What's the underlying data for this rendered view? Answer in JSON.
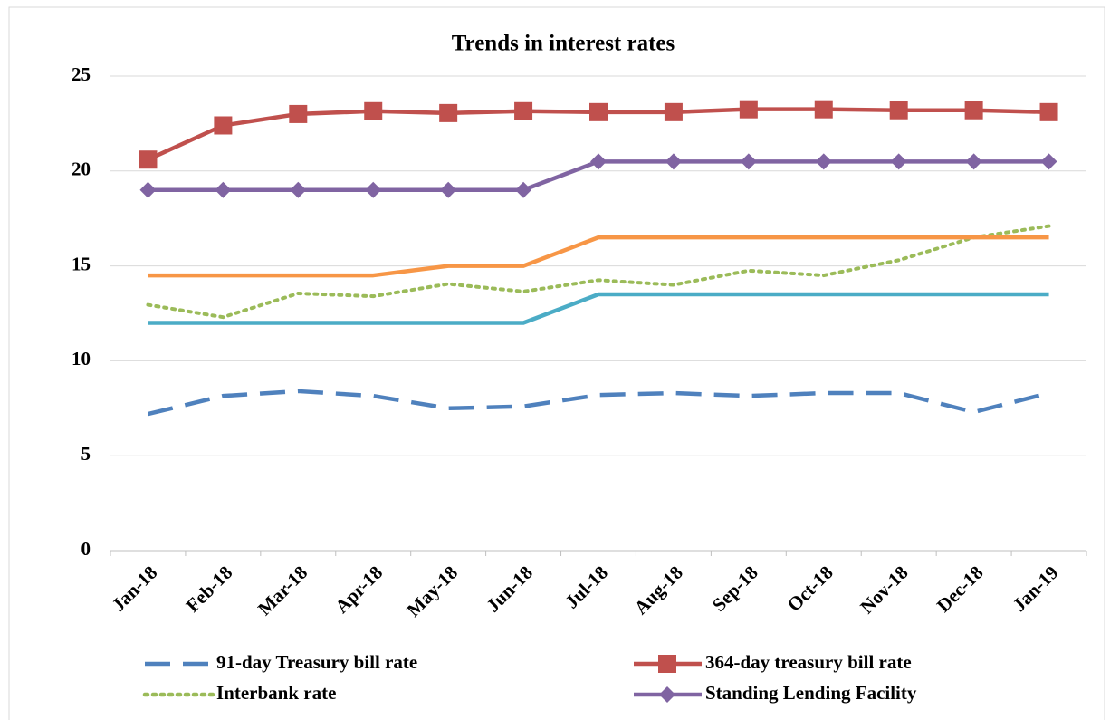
{
  "chart_data": {
    "type": "line",
    "title": "Trends in interest rates",
    "categories": [
      "Jan-18",
      "Feb-18",
      "Mar-18",
      "Apr-18",
      "May-18",
      "Jun-18",
      "Jul-18",
      "Aug-18",
      "Sep-18",
      "Oct-18",
      "Nov-18",
      "Dec-18",
      "Jan-19"
    ],
    "series": [
      {
        "name": "91-day Treasury bill rate",
        "color": "#4f81bd",
        "dash": "dashed",
        "values": [
          7.2,
          8.15,
          8.4,
          8.15,
          7.5,
          7.6,
          8.2,
          8.3,
          8.15,
          8.3,
          8.3,
          7.3,
          8.3
        ]
      },
      {
        "name": "364-day treasury bill rate",
        "color": "#c0504d",
        "marker": "square",
        "values": [
          20.6,
          22.4,
          23.0,
          23.15,
          23.05,
          23.15,
          23.1,
          23.1,
          23.25,
          23.25,
          23.2,
          23.2,
          23.1
        ]
      },
      {
        "name": "Interbank rate",
        "color": "#9bbb59",
        "dash": "dotted",
        "values": [
          12.95,
          12.3,
          13.55,
          13.4,
          14.05,
          13.65,
          14.25,
          14.0,
          14.75,
          14.5,
          15.3,
          16.5,
          17.1
        ]
      },
      {
        "name": "Standing Lending Facility",
        "color": "#8064a2",
        "marker": "diamond",
        "values": [
          19,
          19,
          19,
          19,
          19,
          19,
          20.5,
          20.5,
          20.5,
          20.5,
          20.5,
          20.5,
          20.5
        ]
      },
      {
        "color": "#f79646",
        "values": [
          14.5,
          14.5,
          14.5,
          14.5,
          15,
          15,
          16.5,
          16.5,
          16.5,
          16.5,
          16.5,
          16.5,
          16.5
        ]
      },
      {
        "color": "#4bacc6",
        "values": [
          12,
          12,
          12,
          12,
          12,
          12,
          13.5,
          13.5,
          13.5,
          13.5,
          13.5,
          13.5,
          13.5
        ]
      }
    ],
    "ylim": [
      0,
      25
    ],
    "yticks": [
      0,
      5,
      10,
      15,
      20,
      25
    ],
    "grid": true
  }
}
